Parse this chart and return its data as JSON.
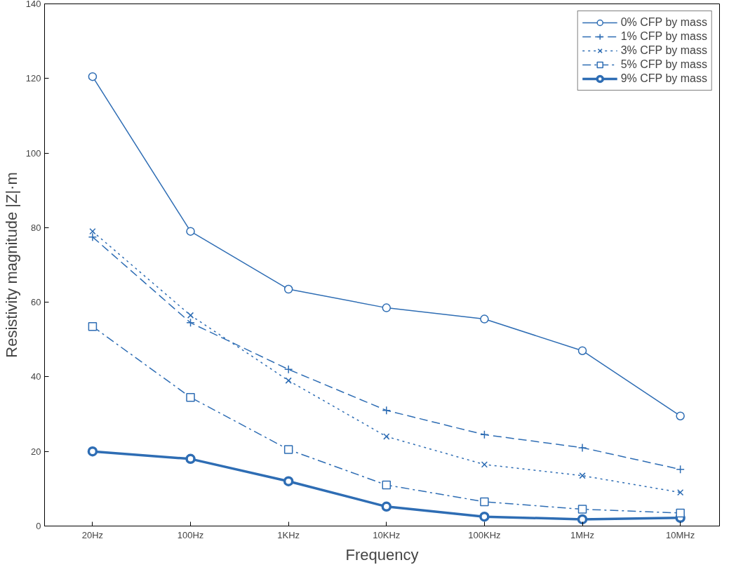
{
  "chart_data": {
    "type": "line",
    "xlabel": "Frequency",
    "ylabel": "Resistivity magnitude |Z|·m",
    "categories": [
      "20Hz",
      "100Hz",
      "1KHz",
      "10KHz",
      "100KHz",
      "1MHz",
      "10MHz"
    ],
    "ylim": [
      0,
      140
    ],
    "yticks": [
      0,
      20,
      40,
      60,
      80,
      100,
      120,
      140
    ],
    "grid": false,
    "legend": "top right",
    "series": [
      {
        "name": "0% CFP by mass",
        "color": "#2e6db4",
        "marker": "circle",
        "line_style": "solid",
        "values": [
          120.5,
          79,
          63.5,
          58.5,
          55.5,
          47,
          29.5
        ]
      },
      {
        "name": "1% CFP by mass",
        "color": "#2e6db4",
        "marker": "cross",
        "line_style": "dashed",
        "values": [
          77.5,
          54.5,
          42,
          31,
          24.5,
          21,
          15.2
        ]
      },
      {
        "name": "3% CFP by mass",
        "color": "#2e6db4",
        "marker": "x",
        "line_style": "dotted",
        "values": [
          79,
          56.5,
          39,
          24,
          16.5,
          13.5,
          9
        ]
      },
      {
        "name": "5% CFP by mass",
        "color": "#2e6db4",
        "marker": "square",
        "line_style": "dashdot",
        "values": [
          53.5,
          34.5,
          20.5,
          11,
          6.5,
          4.5,
          3.5
        ]
      },
      {
        "name": "9% CFP by mass",
        "color": "#2e6db4",
        "marker": "circle",
        "line_style": "solid",
        "values": [
          20,
          18,
          12,
          5.2,
          2.5,
          1.8,
          2.2
        ]
      }
    ]
  }
}
